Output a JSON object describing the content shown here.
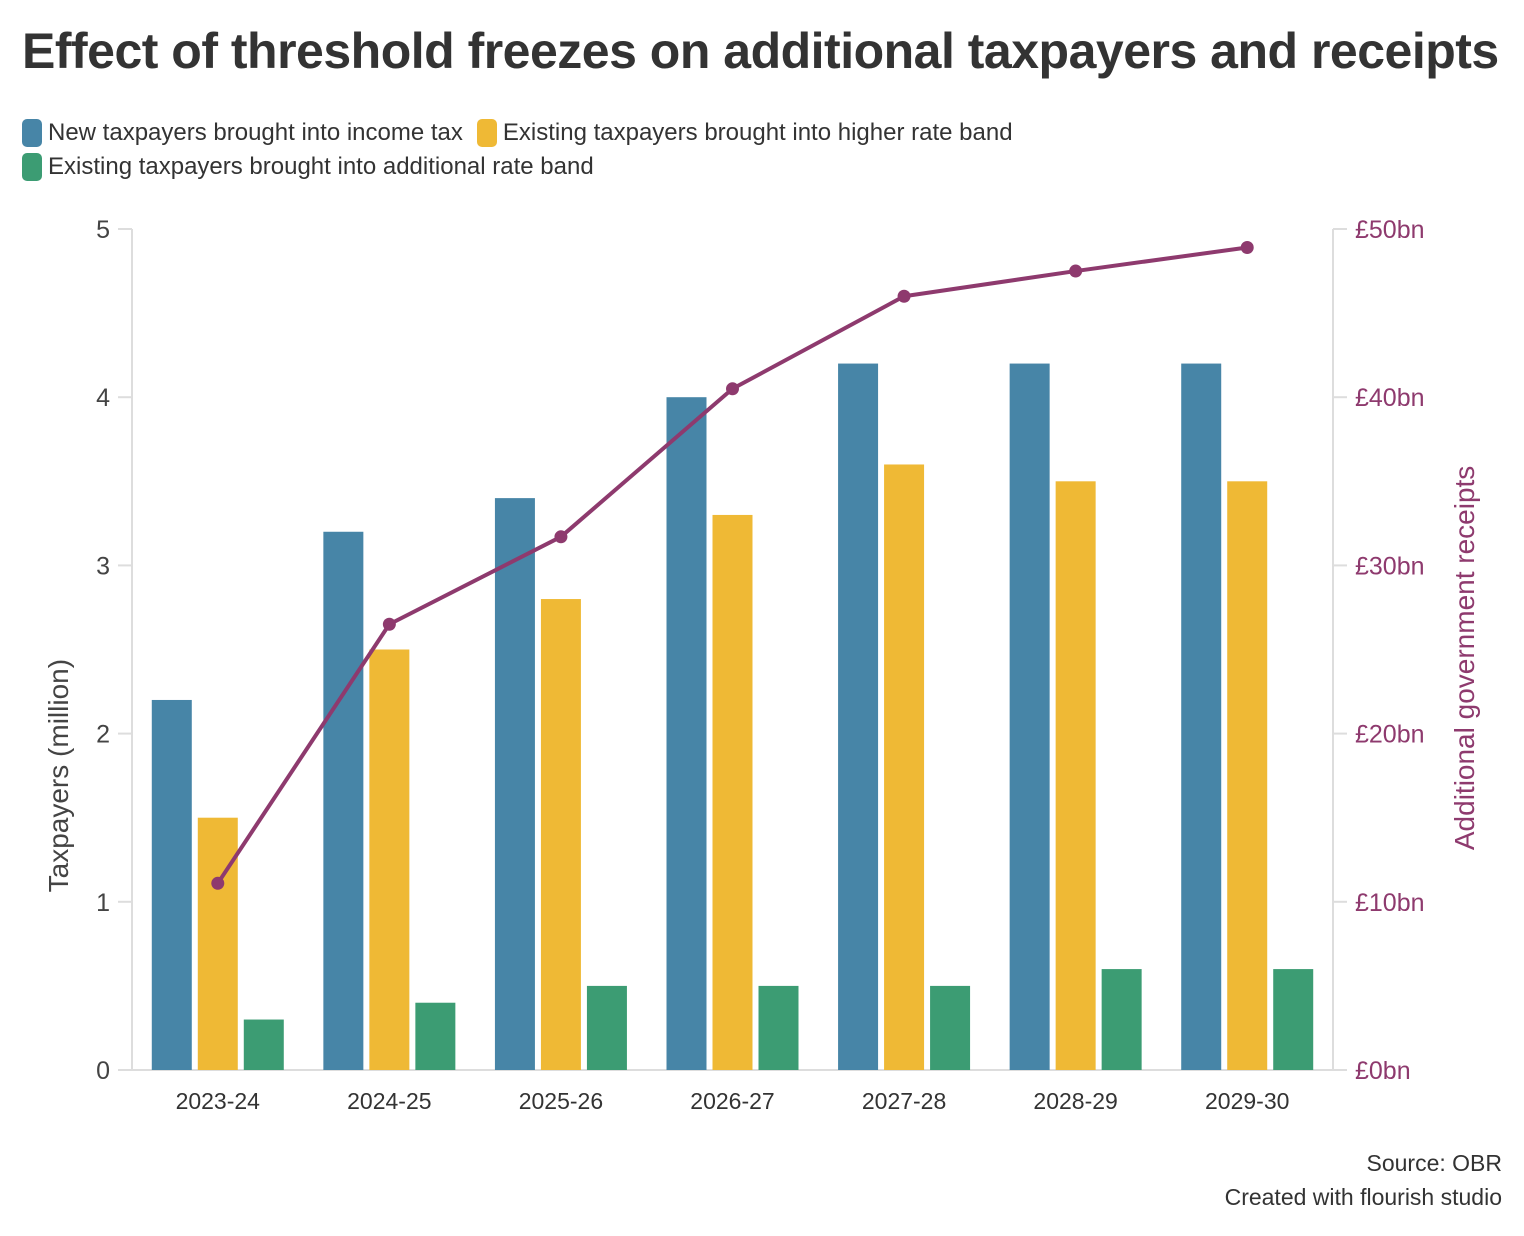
{
  "title": "Effect of threshold freezes on additional taxpayers and receipts",
  "legend": [
    {
      "label": "New taxpayers brought into income tax",
      "color": "#4785a7"
    },
    {
      "label": "Existing taxpayers brought into higher rate band",
      "color": "#efb935"
    },
    {
      "label": "Existing taxpayers brought into additional rate band",
      "color": "#3c9c73"
    }
  ],
  "footer": {
    "source": "Source: OBR",
    "credit": "Created with flourish studio"
  },
  "chart_data": {
    "type": "bar",
    "title": "Effect of threshold freezes on additional taxpayers and receipts",
    "categories": [
      "2023-24",
      "2024-25",
      "2025-26",
      "2026-27",
      "2027-28",
      "2028-29",
      "2029-30"
    ],
    "series": [
      {
        "name": "New taxpayers brought into income tax",
        "color": "#4785a7",
        "values": [
          2.2,
          3.2,
          3.4,
          4.0,
          4.2,
          4.2,
          4.2
        ]
      },
      {
        "name": "Existing taxpayers brought into higher rate band",
        "color": "#efb935",
        "values": [
          1.5,
          2.5,
          2.8,
          3.3,
          3.6,
          3.5,
          3.5
        ]
      },
      {
        "name": "Existing taxpayers brought into additional rate band",
        "color": "#3c9c73",
        "values": [
          0.3,
          0.4,
          0.5,
          0.5,
          0.5,
          0.6,
          0.6
        ]
      }
    ],
    "line_series": {
      "name": "Additional government receipts",
      "color": "#8e3a6e",
      "values": [
        11.1,
        26.5,
        31.7,
        40.5,
        46.0,
        47.5,
        48.9
      ]
    },
    "ylabel": "Taxpayers (million)",
    "ylim": [
      0,
      5
    ],
    "yticks": [
      "0",
      "1",
      "2",
      "3",
      "4",
      "5"
    ],
    "y2label": "Additional government receipts",
    "y2lim": [
      0,
      50
    ],
    "y2ticks": [
      "£0bn",
      "£10bn",
      "£20bn",
      "£30bn",
      "£40bn",
      "£50bn"
    ],
    "xlabel": ""
  }
}
